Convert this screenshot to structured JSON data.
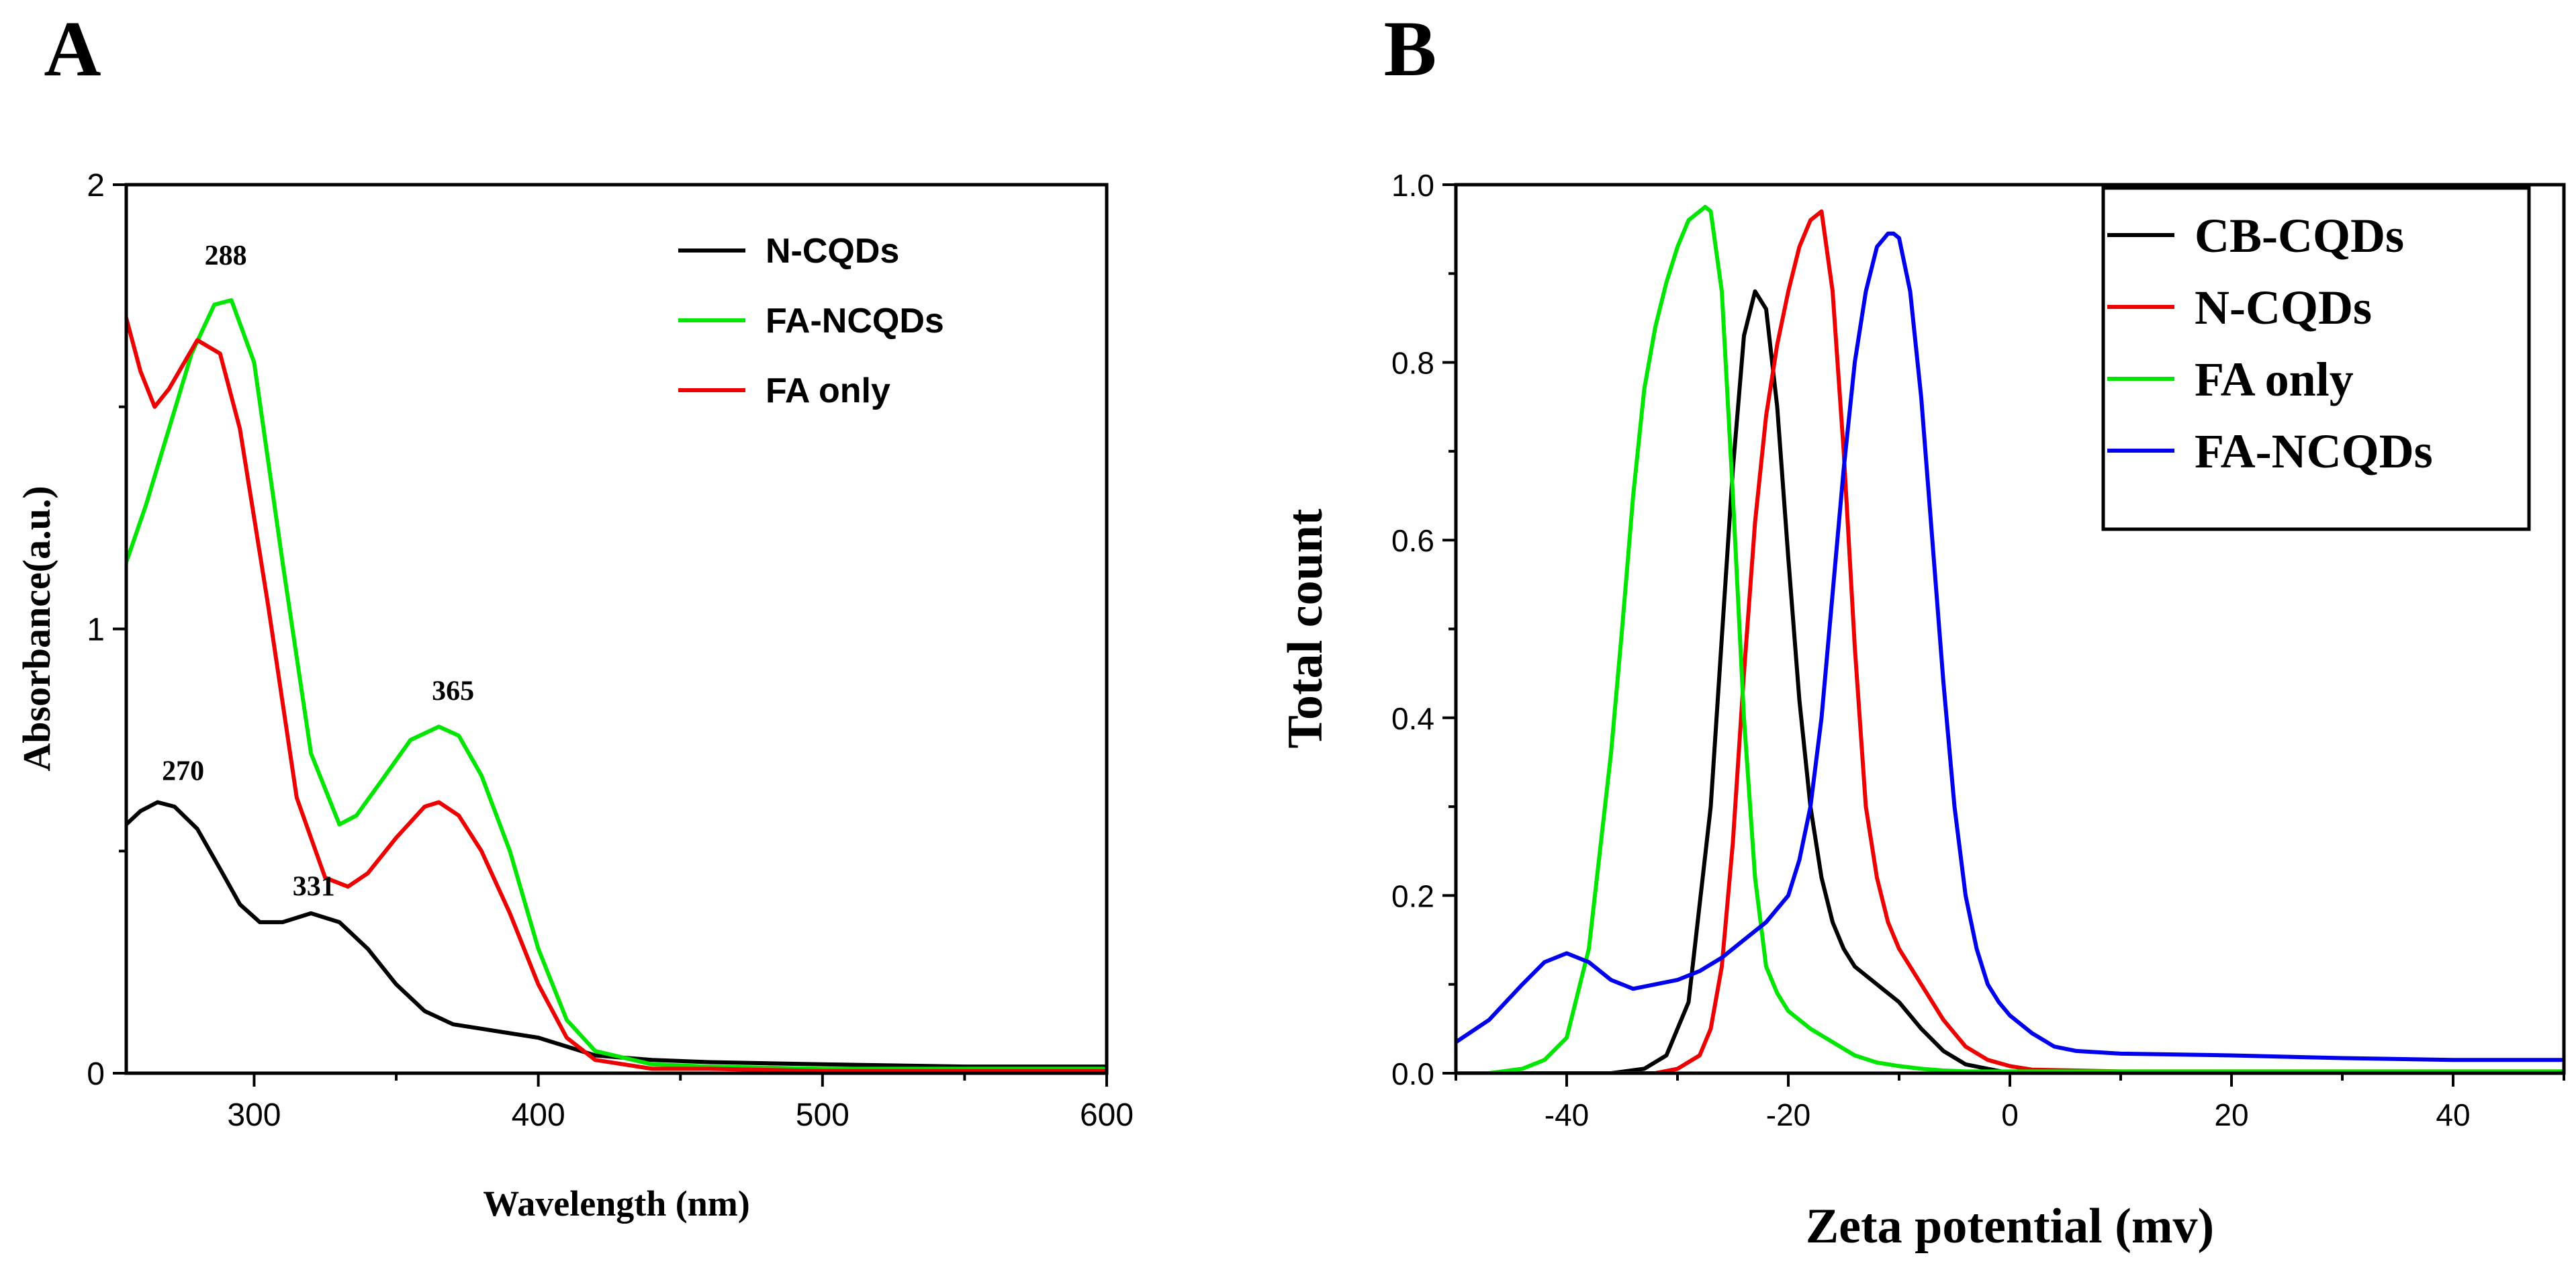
{
  "chart_data": [
    {
      "id": "A",
      "type": "line",
      "panel_label": "A",
      "title": "",
      "xlabel": "Wavelength (nm)",
      "ylabel": "Absorbance(a.u.)",
      "xlim": [
        255,
        600
      ],
      "ylim": [
        0,
        2
      ],
      "xticks": [
        300,
        400,
        500,
        600
      ],
      "yticks": [
        0,
        1,
        2
      ],
      "grid": false,
      "legend_position": "top-right",
      "legend_boxed": false,
      "series": [
        {
          "name": "N-CQDs",
          "color": "#000000",
          "x": [
            255,
            260,
            266,
            272,
            280,
            288,
            295,
            302,
            310,
            320,
            330,
            340,
            350,
            360,
            370,
            380,
            390,
            400,
            410,
            420,
            440,
            460,
            500,
            550,
            600
          ],
          "y": [
            0.56,
            0.59,
            0.61,
            0.6,
            0.55,
            0.46,
            0.38,
            0.34,
            0.34,
            0.36,
            0.34,
            0.28,
            0.2,
            0.14,
            0.11,
            0.1,
            0.09,
            0.08,
            0.06,
            0.04,
            0.03,
            0.025,
            0.02,
            0.015,
            0.015
          ]
        },
        {
          "name": "FA-NCQDs",
          "color": "#00e600",
          "x": [
            255,
            262,
            270,
            278,
            286,
            292,
            300,
            310,
            320,
            330,
            336,
            345,
            355,
            365,
            372,
            380,
            390,
            400,
            410,
            420,
            440,
            460,
            500,
            550,
            600
          ],
          "y": [
            1.15,
            1.28,
            1.45,
            1.62,
            1.73,
            1.74,
            1.6,
            1.15,
            0.72,
            0.56,
            0.58,
            0.66,
            0.75,
            0.78,
            0.76,
            0.67,
            0.5,
            0.28,
            0.12,
            0.05,
            0.02,
            0.015,
            0.01,
            0.01,
            0.01
          ]
        },
        {
          "name": "FA only",
          "color": "#ee0000",
          "x": [
            255,
            260,
            265,
            270,
            280,
            288,
            295,
            305,
            315,
            325,
            333,
            340,
            350,
            360,
            365,
            372,
            380,
            390,
            400,
            410,
            420,
            440,
            460,
            500,
            550,
            600
          ],
          "y": [
            1.7,
            1.58,
            1.5,
            1.54,
            1.65,
            1.62,
            1.45,
            1.05,
            0.62,
            0.44,
            0.42,
            0.45,
            0.53,
            0.6,
            0.61,
            0.58,
            0.5,
            0.36,
            0.2,
            0.08,
            0.03,
            0.01,
            0.01,
            0.005,
            0.005,
            0.005
          ]
        }
      ],
      "annotations": [
        {
          "text": "288",
          "x": 290,
          "y": 1.82
        },
        {
          "text": "270",
          "x": 275,
          "y": 0.66
        },
        {
          "text": "331",
          "x": 321,
          "y": 0.4
        },
        {
          "text": "365",
          "x": 370,
          "y": 0.84
        }
      ]
    },
    {
      "id": "B",
      "type": "line",
      "panel_label": "B",
      "title": "",
      "xlabel": "Zeta potential (mv)",
      "ylabel": "Total count",
      "xlim": [
        -50,
        50
      ],
      "ylim": [
        0,
        1.0
      ],
      "xticks": [
        -40,
        -20,
        0,
        20,
        40
      ],
      "yticks": [
        0.0,
        0.2,
        0.4,
        0.6,
        0.8,
        1.0
      ],
      "grid": false,
      "legend_position": "top-right",
      "legend_boxed": true,
      "series": [
        {
          "name": "CB-CQDs",
          "color": "#000000",
          "x": [
            -50,
            -36,
            -33,
            -31,
            -29,
            -27,
            -25,
            -24,
            -23,
            -22,
            -21,
            -20,
            -19,
            -18,
            -17,
            -16,
            -15,
            -14,
            -12,
            -10,
            -8,
            -6,
            -4,
            -2,
            0,
            10,
            30,
            50
          ],
          "y": [
            0,
            0,
            0.005,
            0.02,
            0.08,
            0.3,
            0.68,
            0.83,
            0.88,
            0.86,
            0.75,
            0.58,
            0.42,
            0.3,
            0.22,
            0.17,
            0.14,
            0.12,
            0.1,
            0.08,
            0.05,
            0.025,
            0.01,
            0.005,
            0,
            0,
            0,
            0
          ]
        },
        {
          "name": "N-CQDs",
          "color": "#ee0000",
          "x": [
            -50,
            -32,
            -30,
            -28,
            -27,
            -26,
            -25,
            -24,
            -23,
            -22,
            -21,
            -20,
            -19,
            -18,
            -17,
            -16,
            -15,
            -14,
            -13,
            -12,
            -11,
            -10,
            -8,
            -6,
            -4,
            -2,
            0,
            2,
            10,
            30,
            50
          ],
          "y": [
            0,
            0,
            0.005,
            0.02,
            0.05,
            0.12,
            0.26,
            0.45,
            0.62,
            0.74,
            0.82,
            0.88,
            0.93,
            0.96,
            0.97,
            0.88,
            0.7,
            0.48,
            0.3,
            0.22,
            0.17,
            0.14,
            0.1,
            0.06,
            0.03,
            0.015,
            0.008,
            0.004,
            0.002,
            0.002,
            0.002
          ]
        },
        {
          "name": "FA only",
          "color": "#00e600",
          "x": [
            -50,
            -47,
            -44,
            -42,
            -40,
            -38,
            -36,
            -35,
            -34,
            -33,
            -32,
            -31,
            -30,
            -29,
            -28,
            -27.5,
            -27,
            -26,
            -25,
            -24,
            -23,
            -22,
            -21,
            -20,
            -18,
            -16,
            -14,
            -12,
            -10,
            -8,
            -6,
            -4,
            0,
            10,
            50
          ],
          "y": [
            0,
            0,
            0.005,
            0.015,
            0.04,
            0.14,
            0.36,
            0.5,
            0.65,
            0.77,
            0.84,
            0.89,
            0.93,
            0.96,
            0.97,
            0.975,
            0.97,
            0.88,
            0.65,
            0.4,
            0.22,
            0.12,
            0.09,
            0.07,
            0.05,
            0.035,
            0.02,
            0.012,
            0.008,
            0.005,
            0.003,
            0.002,
            0.002,
            0.002,
            0.002
          ]
        },
        {
          "name": "FA-NCQDs",
          "color": "#0000ee",
          "x": [
            -50,
            -47,
            -44,
            -42,
            -40,
            -38,
            -36,
            -34,
            -32,
            -30,
            -28,
            -26,
            -24,
            -22,
            -20,
            -19,
            -18,
            -17,
            -16,
            -15,
            -14,
            -13,
            -12,
            -11,
            -10.5,
            -10,
            -9,
            -8,
            -7,
            -6,
            -5,
            -4,
            -3,
            -2,
            -1,
            0,
            2,
            4,
            6,
            10,
            20,
            30,
            40,
            50
          ],
          "y": [
            0.035,
            0.06,
            0.1,
            0.125,
            0.135,
            0.125,
            0.105,
            0.095,
            0.1,
            0.105,
            0.115,
            0.13,
            0.15,
            0.17,
            0.2,
            0.24,
            0.3,
            0.4,
            0.54,
            0.68,
            0.8,
            0.88,
            0.93,
            0.945,
            0.945,
            0.94,
            0.88,
            0.76,
            0.6,
            0.44,
            0.3,
            0.2,
            0.14,
            0.1,
            0.08,
            0.065,
            0.045,
            0.03,
            0.025,
            0.022,
            0.02,
            0.017,
            0.015,
            0.015
          ]
        }
      ]
    }
  ]
}
